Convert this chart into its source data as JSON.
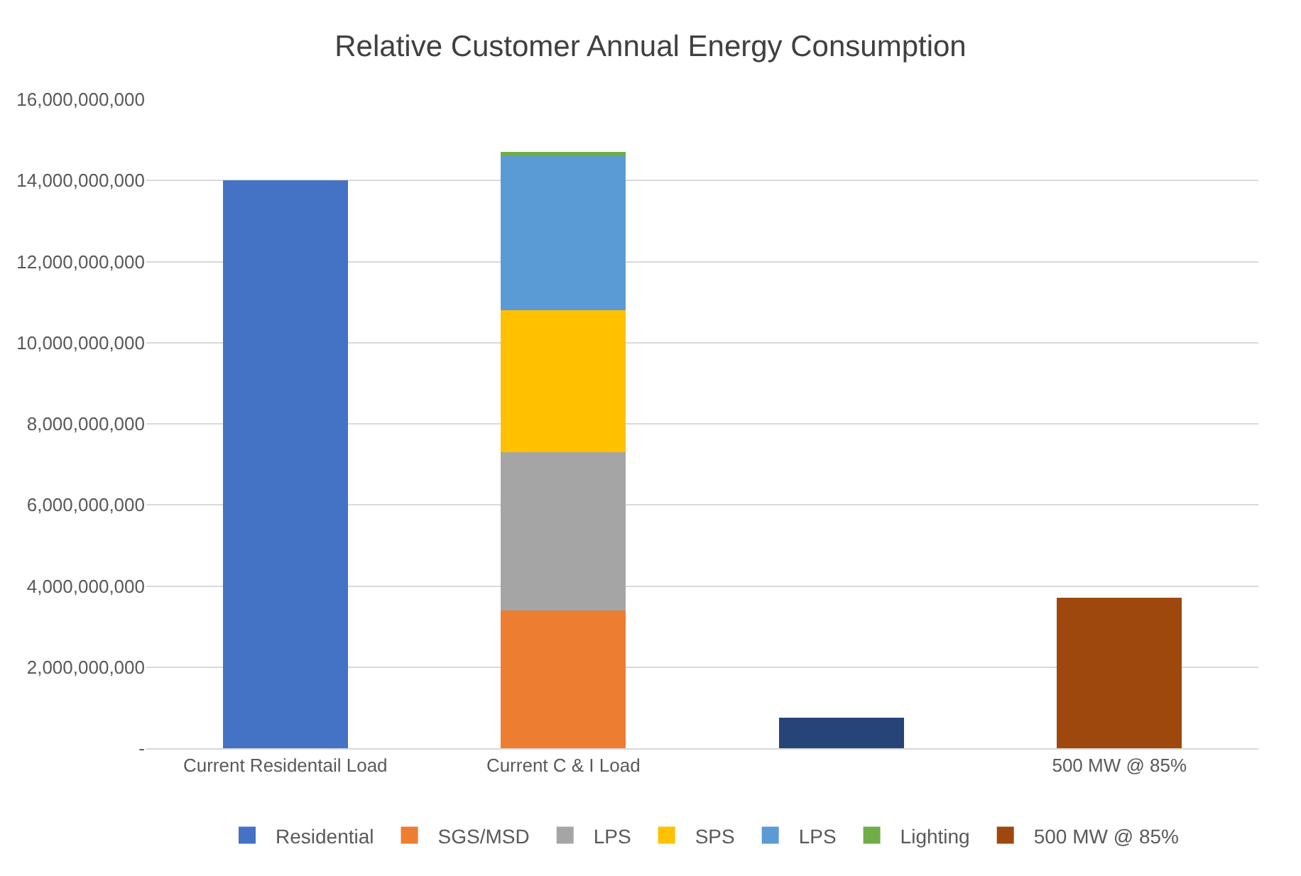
{
  "chart_data": {
    "type": "bar",
    "title": "Relative Customer Annual Energy Consumption",
    "categories": [
      "Current Residentail Load",
      "Current C & I Load",
      null,
      "500 MW @ 85%"
    ],
    "stacked": true,
    "series": [
      {
        "name": "Residential",
        "color": "#4472c4",
        "values": [
          14000000000,
          null,
          null,
          null
        ]
      },
      {
        "name": "SGS/MSD",
        "color": "#ed7d31",
        "values": [
          null,
          3400000000,
          null,
          null
        ]
      },
      {
        "name": "LPS",
        "color": "#a5a5a5",
        "values": [
          null,
          3900000000,
          null,
          null
        ]
      },
      {
        "name": "SPS",
        "color": "#ffc000",
        "values": [
          null,
          3500000000,
          null,
          null
        ]
      },
      {
        "name": "LPS",
        "color": "#5b9bd5",
        "values": [
          null,
          3800000000,
          null,
          null
        ]
      },
      {
        "name": "Lighting",
        "color": "#70ad47",
        "values": [
          null,
          100000000,
          null,
          null
        ]
      },
      {
        "color": "#264478",
        "values": [
          null,
          null,
          750000000,
          null
        ]
      },
      {
        "name": "500 MW @ 85%",
        "color": "#9e480e",
        "values": [
          null,
          null,
          null,
          3720000000
        ]
      }
    ],
    "ylim": [
      0,
      16000000000
    ],
    "yticks": [
      {
        "value": 0,
        "label": "-"
      },
      {
        "value": 2000000000,
        "label": "2,000,000,000"
      },
      {
        "value": 4000000000,
        "label": "4,000,000,000"
      },
      {
        "value": 6000000000,
        "label": "6,000,000,000"
      },
      {
        "value": 8000000000,
        "label": "8,000,000,000"
      },
      {
        "value": 10000000000,
        "label": "10,000,000,000"
      },
      {
        "value": 12000000000,
        "label": "12,000,000,000"
      },
      {
        "value": 14000000000,
        "label": "14,000,000,000"
      },
      {
        "value": 16000000000,
        "label": "16,000,000,000"
      }
    ],
    "grid": "y",
    "legend": "bottom"
  }
}
